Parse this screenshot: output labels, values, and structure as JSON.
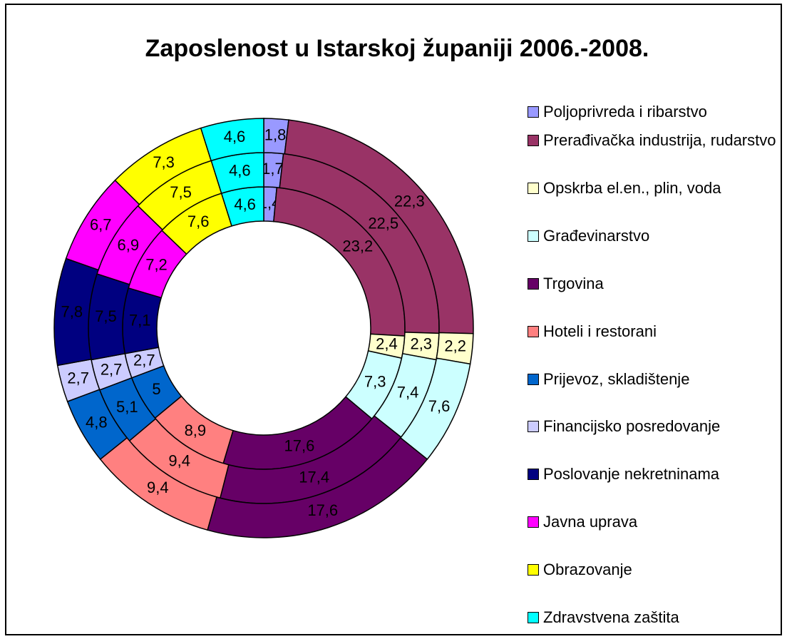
{
  "chart_data": {
    "type": "doughnut",
    "title": "Zaposlenost u Istarskoj županiji 2006.-2008.",
    "categories": [
      "Poljoprivreda i ribarstvo",
      "Prerađivačka industrija, rudarstvo",
      "Opskrba el.en., plin, voda",
      "Građevinarstvo",
      "Trgovina",
      "Hoteli i restorani",
      "Prijevoz, skladištenje",
      "Financijsko posredovanje",
      "Poslovanje nekretninama",
      "Javna uprava",
      "Obrazovanje",
      "Zdravstvena zaštita"
    ],
    "colors": [
      "#9999ff",
      "#993366",
      "#ffffcc",
      "#ccffff",
      "#660066",
      "#ff8080",
      "#0066cc",
      "#ccccff",
      "#000080",
      "#ff00ff",
      "#ffff00",
      "#00ffff"
    ],
    "series": [
      {
        "values": [
          1.4,
          23.2,
          2.4,
          7.3,
          17.6,
          8.9,
          5,
          2.7,
          7.1,
          7.2,
          7.6,
          4.6
        ],
        "value_labels": [
          "1,4",
          "23,2",
          "2,4",
          "7,3",
          "17,6",
          "8,9",
          "5",
          "2,7",
          "7,1",
          "7,2",
          "7,6",
          "4,6"
        ]
      },
      {
        "values": [
          1.7,
          22.5,
          2.3,
          7.4,
          17.4,
          9.4,
          5.1,
          2.7,
          7.5,
          6.9,
          7.5,
          4.6
        ],
        "value_labels": [
          "1,7",
          "22,5",
          "2,3",
          "7,4",
          "17,4",
          "9,4",
          "5,1",
          "2,7",
          "7,5",
          "6,9",
          "7,5",
          "4,6"
        ]
      },
      {
        "values": [
          1.8,
          22.3,
          2.2,
          7.6,
          17.6,
          9.4,
          4.8,
          2.7,
          7.8,
          6.7,
          7.3,
          4.6
        ],
        "value_labels": [
          "1,8",
          "22,3",
          "2,2",
          "7,6",
          "17,6",
          "9,4",
          "4,8",
          "2,7",
          "7,8",
          "6,7",
          "7,3",
          "4,6"
        ]
      }
    ],
    "legend": "right"
  }
}
